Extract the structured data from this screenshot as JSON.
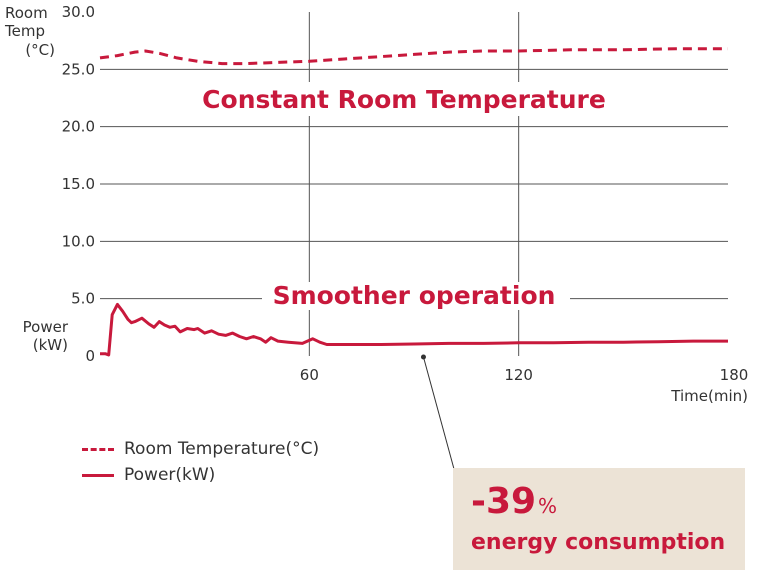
{
  "chart_data": {
    "type": "line",
    "y_axis_title": [
      "Room",
      "Temp",
      "(°C)"
    ],
    "y_axis_power_title": [
      "Power",
      "(kW)"
    ],
    "x_axis_title": "Time(min)",
    "xlim": [
      0,
      180
    ],
    "ylim": [
      0,
      30
    ],
    "x_ticks": [
      60,
      120,
      180
    ],
    "x_tick_labels": [
      "60",
      "120",
      "180"
    ],
    "y_ticks": [
      0,
      5,
      10,
      15,
      20,
      25,
      30
    ],
    "y_tick_labels": [
      "0",
      "5.0",
      "10.0",
      "15.0",
      "20.0",
      "25.0",
      "30.0"
    ],
    "grid": true,
    "series": [
      {
        "name": "Room Temperature(°C)",
        "style": "dashed",
        "color": "#c8193c",
        "x": [
          0,
          5,
          10,
          13,
          17,
          22,
          28,
          35,
          42,
          50,
          60,
          70,
          80,
          90,
          100,
          110,
          120,
          135,
          150,
          165,
          180
        ],
        "y": [
          26.0,
          26.2,
          26.5,
          26.6,
          26.4,
          26.0,
          25.7,
          25.5,
          25.5,
          25.6,
          25.7,
          25.9,
          26.1,
          26.3,
          26.5,
          26.6,
          26.6,
          26.7,
          26.7,
          26.8,
          26.8
        ]
      },
      {
        "name": "Power(kW)",
        "style": "solid",
        "color": "#c8193c",
        "x": [
          0,
          1.5,
          2.5,
          3.5,
          5,
          6.5,
          8,
          9,
          10,
          12,
          14,
          15.5,
          17,
          18.5,
          20,
          21.5,
          23,
          25,
          27,
          28,
          30,
          32,
          34,
          36,
          38,
          40,
          42,
          44,
          45,
          46,
          47.5,
          49,
          51,
          54,
          58,
          61,
          63,
          65,
          70,
          80,
          90,
          100,
          110,
          120,
          130,
          140,
          150,
          160,
          170,
          180
        ],
        "y": [
          0.2,
          0.2,
          0.1,
          3.6,
          4.5,
          3.9,
          3.2,
          2.9,
          3.0,
          3.3,
          2.8,
          2.5,
          3.0,
          2.7,
          2.5,
          2.6,
          2.1,
          2.4,
          2.3,
          2.4,
          2.0,
          2.2,
          1.9,
          1.8,
          2.0,
          1.7,
          1.5,
          1.7,
          1.6,
          1.5,
          1.2,
          1.6,
          1.3,
          1.2,
          1.1,
          1.5,
          1.2,
          1.0,
          1.0,
          1.0,
          1.05,
          1.1,
          1.1,
          1.15,
          1.15,
          1.2,
          1.2,
          1.25,
          1.3,
          1.3
        ]
      }
    ],
    "annotations": [
      "Constant Room Temperature",
      "Smoother operation"
    ]
  },
  "legend": [
    {
      "label": "Room Temperature(°C)",
      "style": "dashed"
    },
    {
      "label": "Power(kW)",
      "style": "solid"
    }
  ],
  "callout": {
    "value": "-39",
    "unit": "%",
    "text": "energy consumption",
    "pointer_at": {
      "x": 93,
      "y": 0
    }
  },
  "colors": {
    "accent": "#c8193c",
    "callout_bg": "#ece3d6",
    "grid": "#555555"
  }
}
